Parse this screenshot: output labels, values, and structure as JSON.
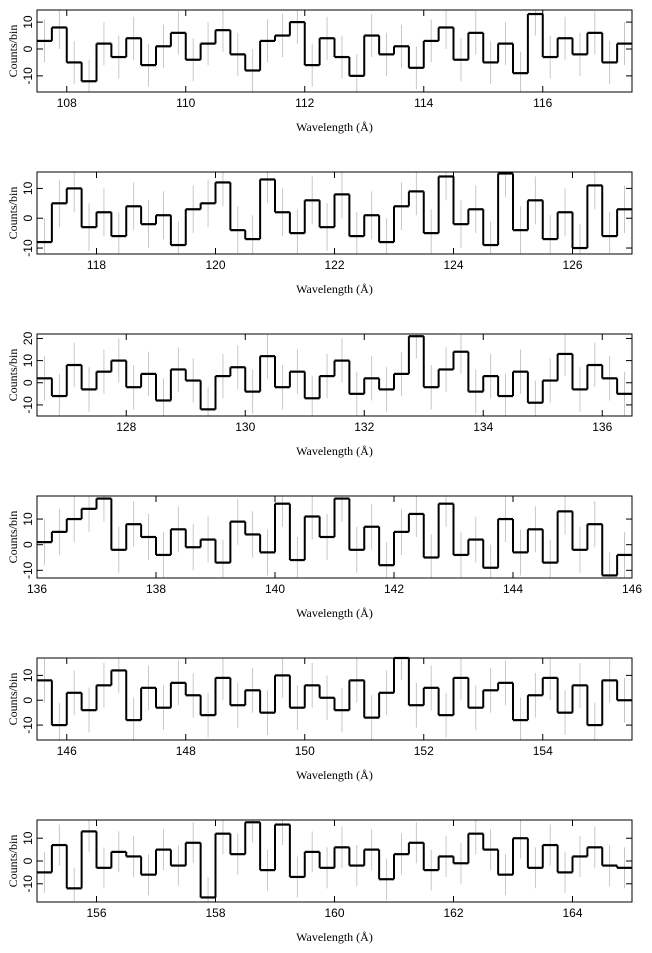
{
  "chart_data": [
    {
      "type": "step",
      "x_label": "Wavelength (Å)",
      "y_label": "Counts/bin",
      "color": "#000000",
      "error_color": "#bbbbbb",
      "error": 8,
      "xlim": [
        107.5,
        117.5
      ],
      "ylim": [
        -16,
        14.5
      ],
      "xticks": [
        108,
        110,
        112,
        114,
        116
      ],
      "yticks": [
        -10,
        0,
        10
      ],
      "x": [
        107.5,
        107.75,
        108,
        108.25,
        108.5,
        108.75,
        109,
        109.25,
        109.5,
        109.75,
        110,
        110.25,
        110.5,
        110.75,
        111,
        111.25,
        111.5,
        111.75,
        112,
        112.25,
        112.5,
        112.75,
        113,
        113.25,
        113.5,
        113.75,
        114,
        114.25,
        114.5,
        114.75,
        115,
        115.25,
        115.5,
        115.75,
        116,
        116.25,
        116.5,
        116.75,
        117,
        117.25
      ],
      "values": [
        3,
        8,
        -5,
        -12,
        2,
        -3,
        4,
        -6,
        1,
        6,
        -4,
        2,
        7,
        -2,
        -8,
        3,
        5,
        10,
        -6,
        4,
        -3,
        -10,
        5,
        -2,
        1,
        -7,
        3,
        8,
        -4,
        6,
        -5,
        2,
        -9,
        13,
        -3,
        4,
        -2,
        6,
        -5,
        2
      ]
    },
    {
      "type": "step",
      "x_label": "Wavelength (Å)",
      "y_label": "Counts/bin",
      "color": "#000000",
      "error_color": "#bbbbbb",
      "error": 8,
      "xlim": [
        117,
        127
      ],
      "ylim": [
        -12,
        15.5
      ],
      "xticks": [
        118,
        120,
        122,
        124,
        126
      ],
      "yticks": [
        -10,
        0,
        10
      ],
      "x": [
        117,
        117.25,
        117.5,
        117.75,
        118,
        118.25,
        118.5,
        118.75,
        119,
        119.25,
        119.5,
        119.75,
        120,
        120.25,
        120.5,
        120.75,
        121,
        121.25,
        121.5,
        121.75,
        122,
        122.25,
        122.5,
        122.75,
        123,
        123.25,
        123.5,
        123.75,
        124,
        124.25,
        124.5,
        124.75,
        125,
        125.25,
        125.5,
        125.75,
        126,
        126.25,
        126.5,
        126.75
      ],
      "values": [
        -8,
        5,
        10,
        -3,
        2,
        -6,
        4,
        -2,
        1,
        -9,
        3,
        5,
        12,
        -4,
        -7,
        13,
        2,
        -5,
        6,
        -3,
        8,
        -6,
        1,
        -8,
        4,
        9,
        -5,
        14,
        -2,
        3,
        -9,
        15,
        -4,
        6,
        -7,
        2,
        -10,
        11,
        -6,
        3
      ]
    },
    {
      "type": "step",
      "x_label": "Wavelength (Å)",
      "y_label": "Counts/bin",
      "color": "#000000",
      "error_color": "#bbbbbb",
      "error": 10,
      "xlim": [
        126.5,
        136.5
      ],
      "ylim": [
        -15,
        22
      ],
      "xticks": [
        128,
        130,
        132,
        134,
        136
      ],
      "yticks": [
        -10,
        0,
        10,
        20
      ],
      "x": [
        126.5,
        126.75,
        127,
        127.25,
        127.5,
        127.75,
        128,
        128.25,
        128.5,
        128.75,
        129,
        129.25,
        129.5,
        129.75,
        130,
        130.25,
        130.5,
        130.75,
        131,
        131.25,
        131.5,
        131.75,
        132,
        132.25,
        132.5,
        132.75,
        133,
        133.25,
        133.5,
        133.75,
        134,
        134.25,
        134.5,
        134.75,
        135,
        135.25,
        135.5,
        135.75,
        136,
        136.25
      ],
      "values": [
        2,
        -6,
        8,
        -3,
        5,
        10,
        -2,
        4,
        -8,
        6,
        1,
        -12,
        3,
        7,
        -4,
        12,
        -2,
        5,
        -7,
        3,
        10,
        -5,
        2,
        -3,
        4,
        21,
        -2,
        6,
        14,
        -4,
        3,
        -6,
        5,
        -9,
        1,
        13,
        -3,
        8,
        2,
        -5
      ]
    },
    {
      "type": "step",
      "x_label": "Wavelength (Å)",
      "y_label": "Counts/bin",
      "color": "#000000",
      "error_color": "#bbbbbb",
      "error": 9,
      "xlim": [
        136,
        146
      ],
      "ylim": [
        -13,
        19
      ],
      "xticks": [
        136,
        138,
        140,
        142,
        144,
        146
      ],
      "yticks": [
        -10,
        0,
        10
      ],
      "x": [
        136,
        136.25,
        136.5,
        136.75,
        137,
        137.25,
        137.5,
        137.75,
        138,
        138.25,
        138.5,
        138.75,
        139,
        139.25,
        139.5,
        139.75,
        140,
        140.25,
        140.5,
        140.75,
        141,
        141.25,
        141.5,
        141.75,
        142,
        142.25,
        142.5,
        142.75,
        143,
        143.25,
        143.5,
        143.75,
        144,
        144.25,
        144.5,
        144.75,
        145,
        145.25,
        145.5,
        145.75
      ],
      "values": [
        1,
        5,
        10,
        14,
        18,
        -2,
        8,
        3,
        -4,
        6,
        -1,
        2,
        -7,
        9,
        4,
        -3,
        16,
        -6,
        11,
        3,
        18,
        -2,
        7,
        -8,
        5,
        12,
        -5,
        16,
        -4,
        2,
        -9,
        10,
        -3,
        6,
        -7,
        13,
        -2,
        8,
        -12,
        -4
      ]
    },
    {
      "type": "step",
      "x_label": "Wavelength (Å)",
      "y_label": "Counts/bin",
      "color": "#000000",
      "error_color": "#bbbbbb",
      "error": 9,
      "xlim": [
        145.5,
        155.5
      ],
      "ylim": [
        -16,
        17
      ],
      "xticks": [
        146,
        148,
        150,
        152,
        154
      ],
      "yticks": [
        -10,
        0,
        10
      ],
      "x": [
        145.5,
        145.75,
        146,
        146.25,
        146.5,
        146.75,
        147,
        147.25,
        147.5,
        147.75,
        148,
        148.25,
        148.5,
        148.75,
        149,
        149.25,
        149.5,
        149.75,
        150,
        150.25,
        150.5,
        150.75,
        151,
        151.25,
        151.5,
        151.75,
        152,
        152.25,
        152.5,
        152.75,
        153,
        153.25,
        153.5,
        153.75,
        154,
        154.25,
        154.5,
        154.75,
        155,
        155.25
      ],
      "values": [
        8,
        -10,
        3,
        -4,
        6,
        12,
        -8,
        5,
        -3,
        7,
        2,
        -6,
        9,
        -2,
        4,
        -5,
        10,
        -3,
        6,
        1,
        -4,
        8,
        -7,
        3,
        17,
        -2,
        5,
        -6,
        9,
        -3,
        4,
        7,
        -8,
        2,
        9,
        -5,
        6,
        -10,
        8,
        0
      ]
    },
    {
      "type": "step",
      "x_label": "Wavelength (Å)",
      "y_label": "Counts/bin",
      "color": "#000000",
      "error_color": "#bbbbbb",
      "error": 9,
      "xlim": [
        155,
        165
      ],
      "ylim": [
        -18,
        18
      ],
      "xticks": [
        156,
        158,
        160,
        162,
        164
      ],
      "yticks": [
        -10,
        0,
        10
      ],
      "x": [
        155,
        155.25,
        155.5,
        155.75,
        156,
        156.25,
        156.5,
        156.75,
        157,
        157.25,
        157.5,
        157.75,
        158,
        158.25,
        158.5,
        158.75,
        159,
        159.25,
        159.5,
        159.75,
        160,
        160.25,
        160.5,
        160.75,
        161,
        161.25,
        161.5,
        161.75,
        162,
        162.25,
        162.5,
        162.75,
        163,
        163.25,
        163.5,
        163.75,
        164,
        164.25,
        164.5,
        164.75
      ],
      "values": [
        -5,
        7,
        -12,
        13,
        -3,
        4,
        2,
        -6,
        5,
        -2,
        8,
        -16,
        12,
        3,
        17,
        -4,
        16,
        -7,
        4,
        -3,
        6,
        -2,
        5,
        -8,
        3,
        8,
        -4,
        2,
        -1,
        12,
        5,
        -6,
        10,
        -3,
        7,
        -5,
        2,
        6,
        -2,
        -3
      ]
    }
  ]
}
